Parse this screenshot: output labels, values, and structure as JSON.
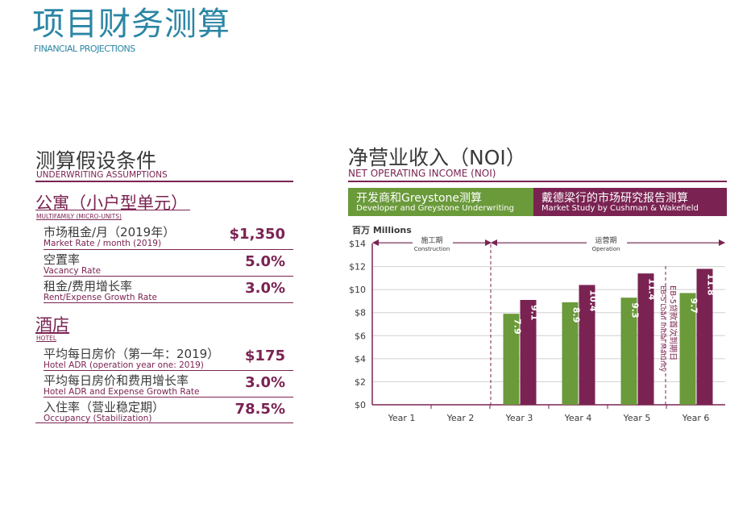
{
  "header": {
    "title": "项目财务测算",
    "subtitle": "FINANCIAL PROJECTIONS"
  },
  "assumptions": {
    "title_cn": "测算假设条件",
    "title_en": "UNDERWRITING ASSUMPTIONS",
    "multifamily": {
      "title_cn": "公寓（小户型单元）",
      "title_en": "MULTIFAMILY (MICRO-UNITS)",
      "rows": [
        {
          "cn": "市场租金/月（2019年）",
          "en": "Market Rate / month (2019)",
          "value": "$1,350"
        },
        {
          "cn": "空置率",
          "en": "Vacancy Rate",
          "value": "5.0%"
        },
        {
          "cn": "租金/费用增长率",
          "en": "Rent/Expense Growth Rate",
          "value": "3.0%"
        }
      ]
    },
    "hotel": {
      "title_cn": "酒店",
      "title_en": "HOTEL",
      "rows": [
        {
          "cn": "平均每日房价（第一年：2019）",
          "en": "Hotel ADR (operation year one: 2019)",
          "value": "$175"
        },
        {
          "cn": "平均每日房价和费用增长率",
          "en": "Hotel ADR and Expense Growth Rate",
          "value": "3.0%"
        },
        {
          "cn": "入住率（营业稳定期）",
          "en": "Occupancy (Stabilization)",
          "value": "78.5%"
        }
      ]
    }
  },
  "noi": {
    "title_cn": "净营业收入（NOI）",
    "title_en": "NET OPERATING INCOME (NOI)",
    "legend": [
      {
        "cn": "开发商和Greystone测算",
        "en": "Developer and Greystone Underwriting",
        "color": "#6a9a3a"
      },
      {
        "cn": "戴德梁行的市场研究报告测算",
        "en": "Market Study by Cushman & Wakefield",
        "color": "#7a2352"
      }
    ],
    "unit_label": "百万 Millions",
    "phases": [
      {
        "cn": "施工期",
        "en": "Construction"
      },
      {
        "cn": "运营期",
        "en": "Operation"
      }
    ],
    "eb5_note_cn": "EB-5贷款首次到期日",
    "eb5_note_en": "EB-5 Loan Initial Maturity"
  },
  "chart_data": {
    "type": "bar",
    "title": "",
    "categories": [
      "Year 1",
      "Year 2",
      "Year 3",
      "Year 4",
      "Year 5",
      "Year 6"
    ],
    "series": [
      {
        "name": "开发商和Greystone测算 Developer and Greystone Underwriting",
        "color": "#6a9a3a",
        "values": [
          null,
          null,
          7.9,
          8.9,
          9.3,
          9.7
        ]
      },
      {
        "name": "戴德梁行的市场研究报告测算 Market Study by Cushman & Wakefield",
        "color": "#7a2352",
        "values": [
          null,
          null,
          9.1,
          10.4,
          11.4,
          11.8
        ]
      }
    ],
    "ylim": [
      0,
      14
    ],
    "yticks": [
      "$0",
      "$2",
      "$4",
      "$6",
      "$8",
      "$10",
      "$12",
      "$14"
    ],
    "ytick_values": [
      0,
      2,
      4,
      6,
      8,
      10,
      12,
      14
    ],
    "ylabel": "百万 Millions",
    "grid": true,
    "legend": "top"
  }
}
